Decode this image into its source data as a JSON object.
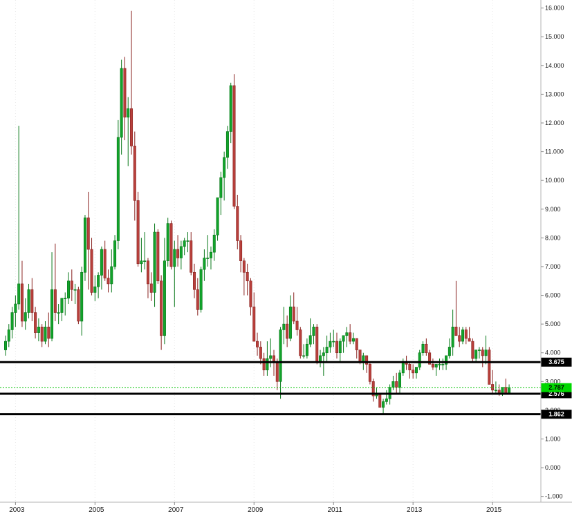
{
  "chart_data": {
    "type": "candlestick",
    "timeframe": "monthly",
    "start_month": "2002-10",
    "end_month": "2015-06",
    "title": "",
    "xlabel": "",
    "ylabel": "",
    "ylim": [
      -1.2,
      16.28
    ],
    "grid": "faint-vertical-dotted",
    "y_axis_ticks": [
      "16.000",
      "15.000",
      "14.000",
      "13.000",
      "12.000",
      "11.000",
      "10.000",
      "9.000",
      "8.000",
      "7.000",
      "6.000",
      "5.000",
      "4.000",
      "3.000",
      "2.000",
      "1.000",
      "0.000",
      "-1.000"
    ],
    "x_axis_ticks": [
      "2003",
      "2005",
      "2007",
      "2009",
      "2011",
      "2013",
      "2015"
    ],
    "levels": [
      {
        "label": "3.675",
        "value": 3.675,
        "style": "solid-black-support-line"
      },
      {
        "label": "2.576",
        "value": 2.576,
        "style": "solid-black-support-line"
      },
      {
        "label": "1.862",
        "value": 1.862,
        "style": "solid-black-support-line"
      }
    ],
    "current_price": {
      "label": "2.787",
      "value": 2.787,
      "style": "green-dotted-line"
    },
    "colors": {
      "background": "#ffffff",
      "up": "#12a32b",
      "up_border": "#077718",
      "down": "#b8403c",
      "down_border": "#88211e",
      "level_line": "#000000",
      "level_tag_bg": "#000000",
      "level_tag_text": "#ffffff",
      "current_line": "#00c400",
      "current_tag_bg": "#00d800",
      "current_tag_text": "#000000",
      "axis_text": "#1a1a1a",
      "axis_line": "#b3b3b3",
      "tick": "#888888",
      "grid": "#e6e6e6"
    },
    "candles": [
      [
        4.1,
        4.6,
        3.9,
        4.4
      ],
      [
        4.4,
        5.0,
        4.2,
        4.8
      ],
      [
        4.8,
        5.6,
        4.5,
        5.4
      ],
      [
        5.4,
        6.0,
        4.9,
        5.7
      ],
      [
        5.7,
        11.9,
        5.5,
        6.4
      ],
      [
        6.4,
        7.2,
        4.9,
        5.1
      ],
      [
        5.1,
        5.9,
        4.8,
        5.4
      ],
      [
        5.4,
        6.4,
        5.2,
        6.2
      ],
      [
        6.2,
        6.6,
        5.1,
        5.4
      ],
      [
        5.4,
        5.6,
        4.5,
        4.7
      ],
      [
        4.7,
        5.2,
        4.4,
        4.9
      ],
      [
        4.9,
        5.0,
        4.2,
        4.4
      ],
      [
        4.4,
        5.1,
        4.3,
        4.9
      ],
      [
        4.9,
        5.4,
        4.2,
        4.5
      ],
      [
        4.5,
        7.5,
        4.4,
        6.2
      ],
      [
        6.2,
        7.8,
        5.1,
        5.4
      ],
      [
        5.4,
        5.7,
        5.0,
        5.4
      ],
      [
        5.4,
        5.9,
        5.1,
        5.9
      ],
      [
        5.9,
        6.1,
        5.3,
        5.9
      ],
      [
        5.9,
        6.8,
        5.7,
        6.5
      ],
      [
        6.5,
        6.9,
        5.8,
        6.2
      ],
      [
        6.2,
        6.4,
        5.7,
        6.2
      ],
      [
        6.2,
        6.3,
        5.0,
        5.1
      ],
      [
        5.1,
        7.0,
        4.6,
        6.8
      ],
      [
        6.8,
        8.8,
        6.5,
        8.7
      ],
      [
        8.7,
        9.6,
        6.2,
        7.6
      ],
      [
        7.6,
        8.0,
        6.0,
        6.1
      ],
      [
        6.1,
        6.7,
        5.8,
        6.3
      ],
      [
        6.3,
        6.8,
        5.9,
        6.7
      ],
      [
        6.7,
        7.7,
        6.2,
        7.6
      ],
      [
        7.6,
        7.9,
        6.5,
        6.6
      ],
      [
        6.6,
        6.9,
        6.1,
        6.4
      ],
      [
        6.4,
        7.6,
        6.1,
        7.0
      ],
      [
        7.0,
        8.1,
        6.9,
        7.9
      ],
      [
        7.9,
        12.1,
        7.6,
        11.5
      ],
      [
        11.5,
        14.2,
        10.9,
        13.9
      ],
      [
        13.9,
        14.3,
        11.4,
        12.2
      ],
      [
        12.2,
        12.9,
        10.5,
        12.5
      ],
      [
        12.5,
        15.9,
        10.9,
        11.2
      ],
      [
        11.2,
        11.7,
        8.6,
        9.3
      ],
      [
        9.3,
        9.6,
        7.0,
        7.1
      ],
      [
        7.1,
        8.0,
        6.8,
        7.2
      ],
      [
        7.2,
        8.2,
        6.9,
        7.2
      ],
      [
        7.2,
        7.3,
        5.9,
        6.4
      ],
      [
        6.4,
        6.8,
        5.8,
        6.1
      ],
      [
        6.1,
        8.5,
        5.6,
        8.2
      ],
      [
        8.2,
        8.3,
        6.4,
        6.5
      ],
      [
        6.5,
        6.7,
        4.1,
        4.6
      ],
      [
        4.6,
        8.0,
        4.3,
        7.2
      ],
      [
        7.2,
        8.7,
        7.0,
        8.5
      ],
      [
        8.5,
        8.6,
        6.9,
        7.0
      ],
      [
        7.0,
        7.9,
        5.6,
        7.6
      ],
      [
        7.6,
        8.1,
        7.0,
        7.3
      ],
      [
        7.3,
        7.9,
        6.9,
        7.7
      ],
      [
        7.7,
        8.0,
        7.4,
        7.9
      ],
      [
        7.9,
        8.2,
        7.5,
        7.9
      ],
      [
        7.9,
        8.2,
        6.7,
        6.8
      ],
      [
        6.8,
        7.1,
        5.9,
        6.2
      ],
      [
        6.2,
        6.6,
        5.3,
        5.5
      ],
      [
        5.5,
        7.0,
        5.4,
        6.9
      ],
      [
        6.9,
        7.6,
        6.5,
        7.3
      ],
      [
        7.3,
        8.1,
        7.0,
        7.3
      ],
      [
        7.3,
        7.7,
        6.9,
        7.5
      ],
      [
        7.5,
        8.3,
        7.2,
        8.1
      ],
      [
        8.1,
        9.4,
        7.9,
        9.4
      ],
      [
        9.4,
        10.3,
        8.8,
        10.1
      ],
      [
        10.1,
        11.0,
        9.3,
        10.8
      ],
      [
        10.8,
        11.9,
        10.4,
        11.7
      ],
      [
        11.7,
        13.4,
        11.3,
        13.3
      ],
      [
        13.3,
        13.7,
        9.0,
        9.1
      ],
      [
        9.1,
        9.5,
        7.6,
        7.9
      ],
      [
        7.9,
        8.1,
        6.8,
        7.2
      ],
      [
        7.2,
        7.3,
        6.0,
        6.8
      ],
      [
        6.8,
        7.1,
        6.0,
        6.5
      ],
      [
        6.5,
        6.6,
        5.3,
        5.6
      ],
      [
        5.6,
        6.1,
        4.4,
        4.4
      ],
      [
        4.4,
        4.7,
        3.9,
        4.2
      ],
      [
        4.2,
        4.4,
        3.6,
        3.8
      ],
      [
        3.8,
        4.0,
        3.2,
        3.4
      ],
      [
        3.4,
        4.4,
        3.2,
        3.8
      ],
      [
        3.8,
        4.5,
        3.5,
        3.9
      ],
      [
        3.9,
        4.1,
        3.2,
        3.7
      ],
      [
        3.7,
        3.8,
        2.7,
        3.0
      ],
      [
        3.0,
        4.9,
        2.4,
        4.8
      ],
      [
        4.8,
        5.6,
        4.3,
        5.0
      ],
      [
        5.0,
        5.3,
        4.2,
        4.5
      ],
      [
        4.5,
        6.0,
        4.4,
        5.6
      ],
      [
        5.6,
        6.1,
        5.0,
        5.1
      ],
      [
        5.1,
        5.6,
        4.6,
        4.8
      ],
      [
        4.8,
        4.9,
        3.8,
        3.9
      ],
      [
        3.9,
        4.3,
        3.8,
        3.9
      ],
      [
        3.9,
        4.5,
        3.8,
        4.3
      ],
      [
        4.3,
        5.2,
        4.2,
        4.6
      ],
      [
        4.6,
        5.0,
        4.3,
        4.9
      ],
      [
        4.9,
        5.0,
        3.6,
        3.7
      ],
      [
        3.7,
        4.1,
        3.5,
        3.9
      ],
      [
        3.9,
        4.2,
        3.2,
        4.0
      ],
      [
        4.0,
        4.6,
        3.7,
        4.2
      ],
      [
        4.2,
        4.7,
        4.0,
        4.4
      ],
      [
        4.4,
        4.8,
        4.2,
        4.4
      ],
      [
        4.4,
        4.7,
        3.8,
        4.0
      ],
      [
        4.0,
        4.5,
        3.7,
        4.4
      ],
      [
        4.4,
        4.6,
        4.0,
        4.6
      ],
      [
        4.6,
        4.9,
        4.2,
        4.7
      ],
      [
        4.7,
        5.0,
        4.3,
        4.4
      ],
      [
        4.4,
        4.7,
        4.3,
        4.5
      ],
      [
        4.5,
        4.5,
        3.8,
        4.1
      ],
      [
        4.1,
        4.1,
        3.6,
        3.7
      ],
      [
        3.7,
        4.0,
        3.4,
        3.9
      ],
      [
        3.9,
        3.9,
        3.3,
        3.6
      ],
      [
        3.6,
        3.7,
        2.9,
        3.0
      ],
      [
        3.0,
        3.1,
        2.3,
        2.5
      ],
      [
        2.5,
        2.8,
        2.4,
        2.6
      ],
      [
        2.6,
        2.6,
        2.1,
        2.1
      ],
      [
        2.1,
        2.4,
        1.86,
        2.3
      ],
      [
        2.3,
        2.7,
        2.2,
        2.4
      ],
      [
        2.4,
        2.9,
        2.2,
        2.8
      ],
      [
        2.8,
        3.2,
        2.7,
        3.0
      ],
      [
        3.0,
        3.3,
        2.6,
        2.8
      ],
      [
        2.8,
        3.4,
        2.6,
        3.3
      ],
      [
        3.3,
        3.8,
        3.2,
        3.7
      ],
      [
        3.7,
        3.9,
        3.4,
        3.6
      ],
      [
        3.6,
        3.7,
        3.1,
        3.4
      ],
      [
        3.4,
        3.6,
        3.1,
        3.3
      ],
      [
        3.3,
        3.5,
        3.1,
        3.5
      ],
      [
        3.5,
        4.1,
        3.4,
        4.0
      ],
      [
        4.0,
        4.4,
        3.9,
        4.3
      ],
      [
        4.3,
        4.5,
        3.9,
        4.0
      ],
      [
        4.0,
        4.1,
        3.6,
        3.6
      ],
      [
        3.6,
        3.8,
        3.4,
        3.5
      ],
      [
        3.5,
        3.6,
        3.2,
        3.6
      ],
      [
        3.6,
        3.8,
        3.4,
        3.6
      ],
      [
        3.6,
        3.8,
        3.4,
        3.6
      ],
      [
        3.6,
        3.9,
        3.4,
        3.9
      ],
      [
        3.9,
        4.5,
        3.8,
        4.2
      ],
      [
        4.2,
        5.5,
        3.9,
        4.9
      ],
      [
        4.9,
        6.5,
        4.6,
        4.6
      ],
      [
        4.6,
        4.9,
        4.2,
        4.4
      ],
      [
        4.4,
        4.9,
        4.3,
        4.8
      ],
      [
        4.8,
        4.9,
        4.3,
        4.5
      ],
      [
        4.5,
        4.9,
        4.4,
        4.4
      ],
      [
        4.4,
        4.5,
        3.7,
        3.8
      ],
      [
        3.8,
        4.1,
        3.7,
        4.1
      ],
      [
        4.1,
        4.2,
        3.8,
        4.1
      ],
      [
        4.1,
        4.2,
        3.5,
        3.9
      ],
      [
        3.9,
        4.6,
        3.6,
        4.1
      ],
      [
        4.1,
        4.2,
        2.9,
        2.9
      ],
      [
        2.9,
        3.4,
        2.6,
        2.7
      ],
      [
        2.7,
        3.0,
        2.6,
        2.7
      ],
      [
        2.7,
        2.9,
        2.5,
        2.6
      ],
      [
        2.6,
        2.8,
        2.5,
        2.8
      ],
      [
        2.8,
        3.1,
        2.6,
        2.6
      ],
      [
        2.6,
        2.9,
        2.6,
        2.79
      ]
    ]
  }
}
